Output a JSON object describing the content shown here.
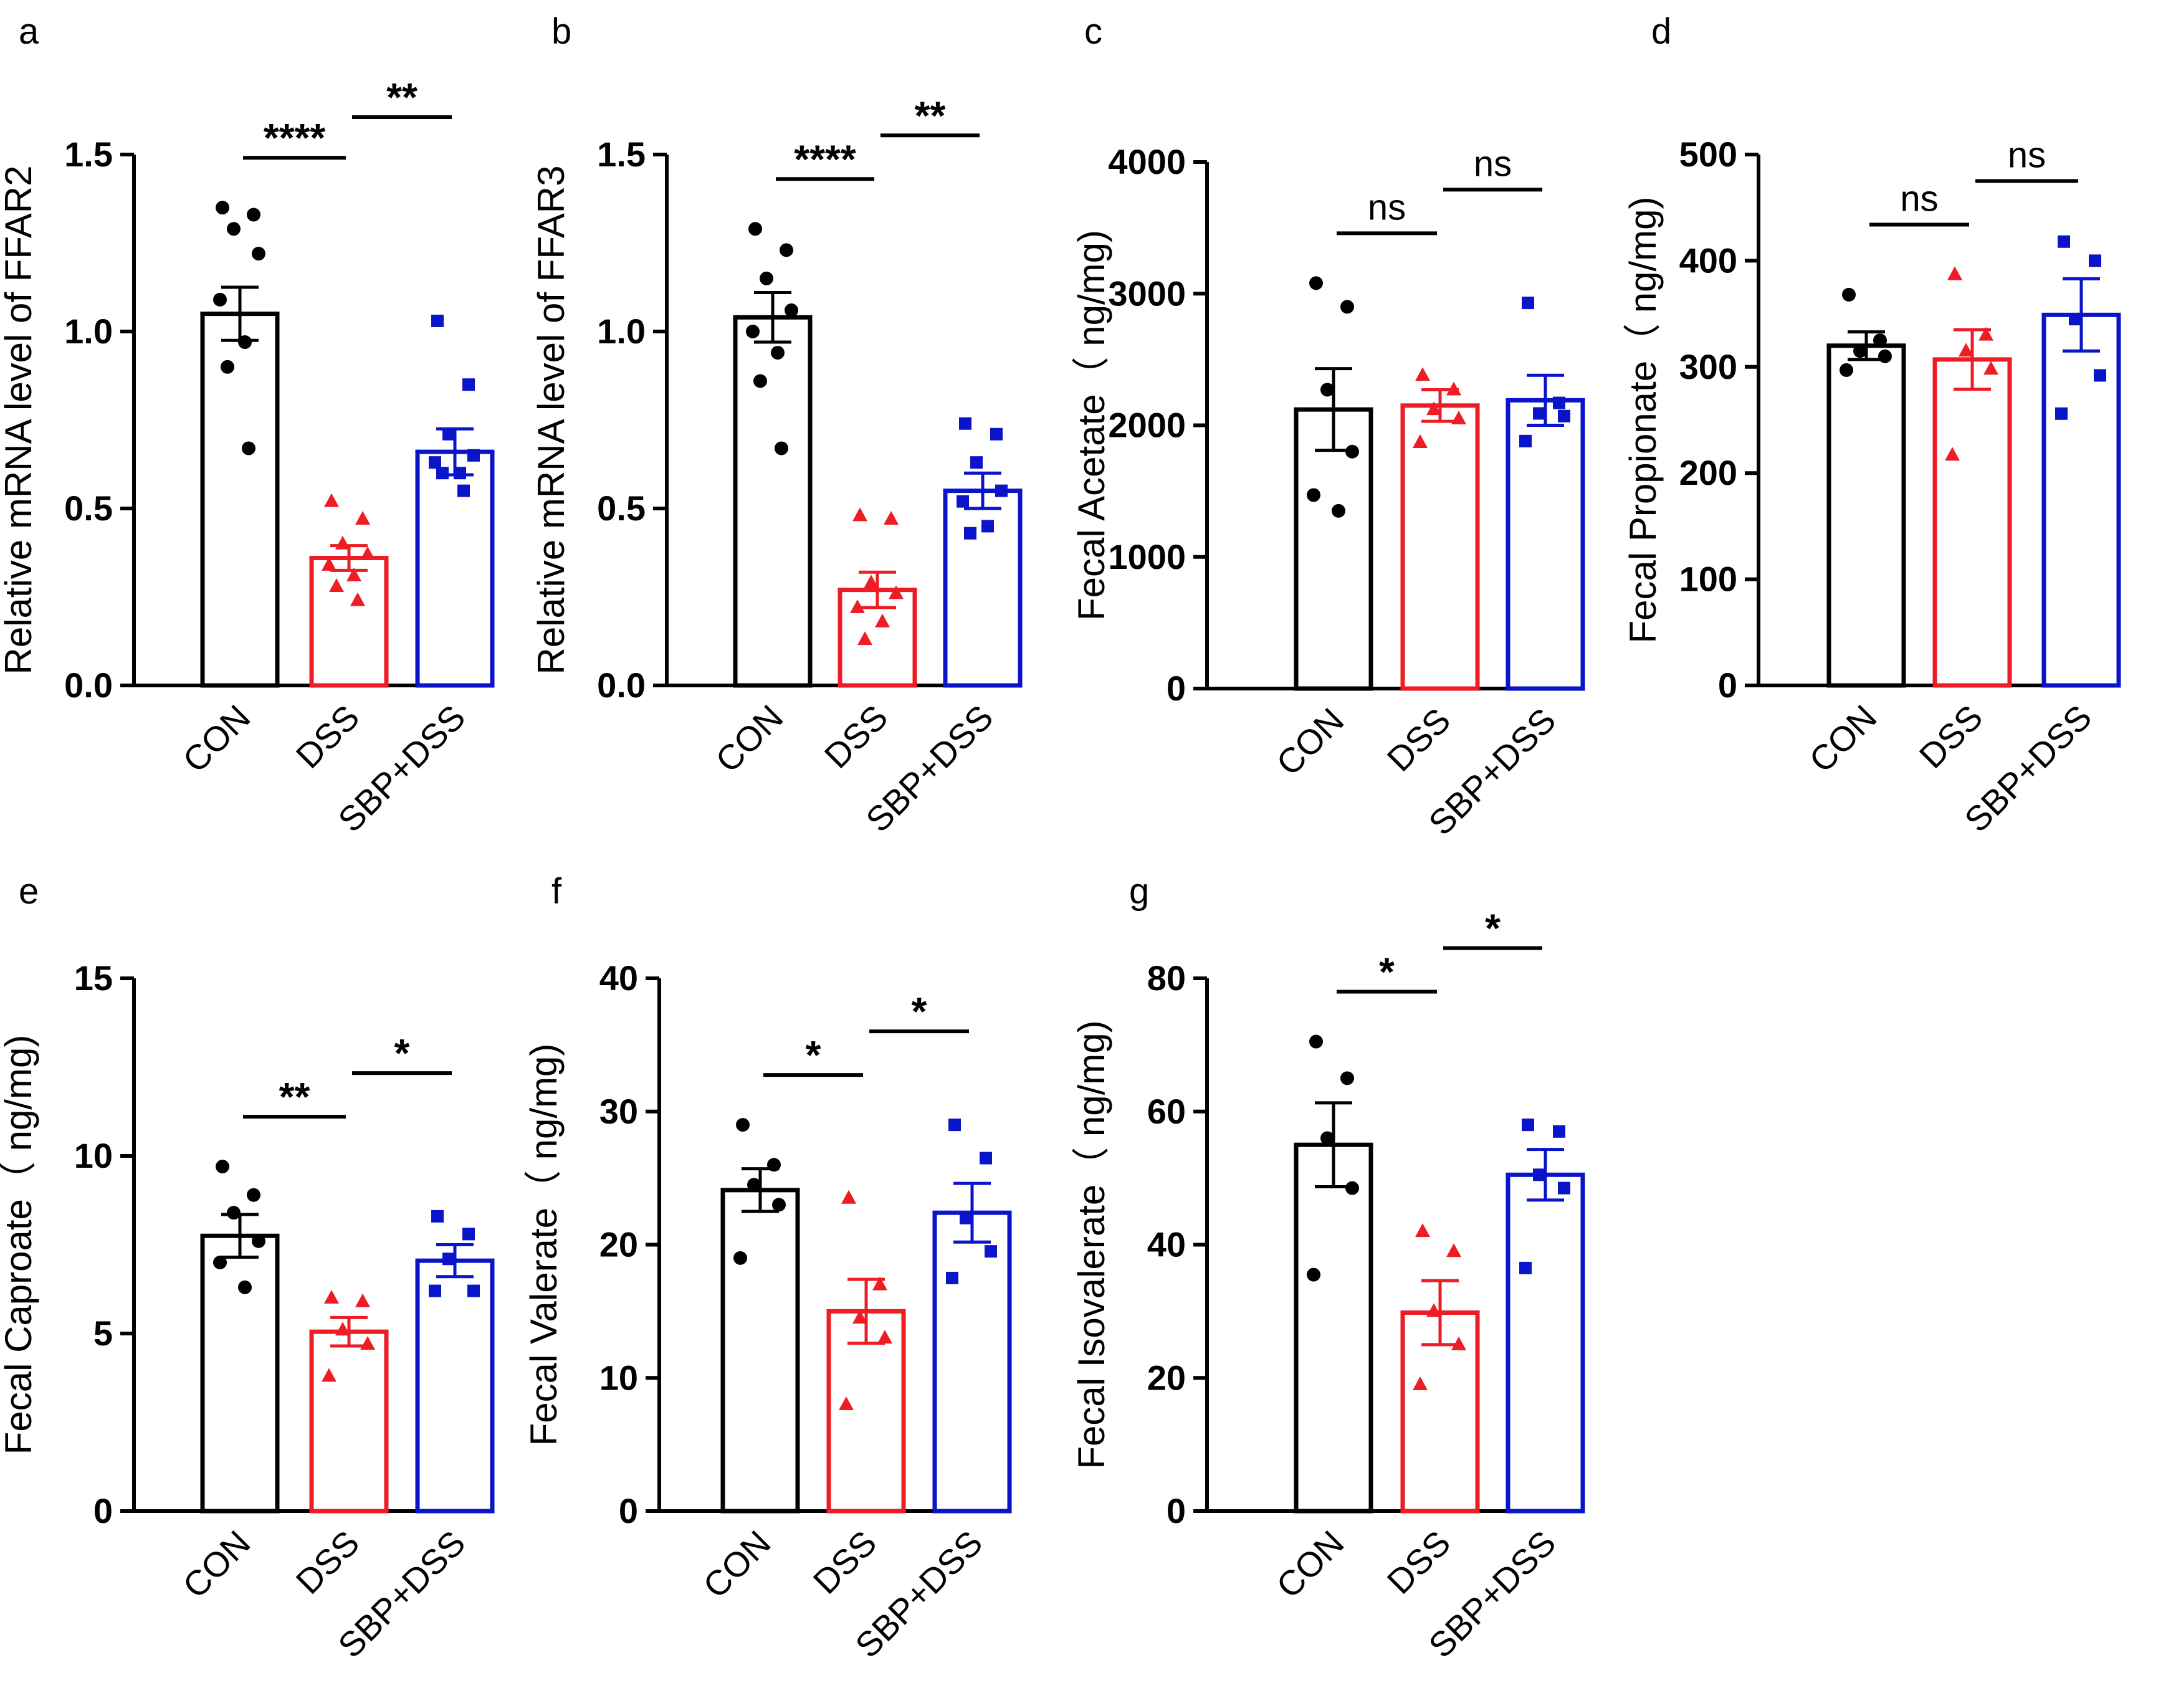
{
  "figure": {
    "description": "Seven bar-chart panels (a-g) with SEM error bars and individual data points",
    "group_colors": {
      "CON": "#000000",
      "DSS": "#ee1c24",
      "SBP+DSS": "#0a14c8"
    }
  },
  "chart_data": [
    {
      "panel": "a",
      "type": "bar",
      "title": "",
      "xlabel": "",
      "ylabel": "Relative mRNA level of FFAR2",
      "categories": [
        "CON",
        "DSS",
        "SBP+DSS"
      ],
      "ylim": [
        0,
        1.5
      ],
      "yticks": [
        0.0,
        0.5,
        1.0,
        1.5
      ],
      "ytick_labels": [
        "0.0",
        "0.5",
        "1.0",
        "1.5"
      ],
      "series": [
        {
          "name": "CON",
          "value": 1.05,
          "sem": 0.075,
          "points": [
            1.35,
            1.33,
            1.29,
            1.22,
            1.09,
            0.97,
            0.9,
            0.67
          ]
        },
        {
          "name": "DSS",
          "value": 0.36,
          "sem": 0.035,
          "points": [
            0.52,
            0.47,
            0.4,
            0.37,
            0.34,
            0.31,
            0.28,
            0.24
          ]
        },
        {
          "name": "SBP+DSS",
          "value": 0.66,
          "sem": 0.065,
          "points": [
            1.03,
            0.85,
            0.71,
            0.65,
            0.63,
            0.6,
            0.6,
            0.55
          ]
        }
      ],
      "significance": [
        {
          "label": "****",
          "between": [
            "CON",
            "DSS"
          ]
        },
        {
          "label": "**",
          "between": [
            "DSS",
            "SBP+DSS"
          ]
        }
      ]
    },
    {
      "panel": "b",
      "type": "bar",
      "title": "",
      "xlabel": "",
      "ylabel": "Relative mRNA level of FFAR3",
      "categories": [
        "CON",
        "DSS",
        "SBP+DSS"
      ],
      "ylim": [
        0,
        1.5
      ],
      "yticks": [
        0.0,
        0.5,
        1.0,
        1.5
      ],
      "ytick_labels": [
        "0.0",
        "0.5",
        "1.0",
        "1.5"
      ],
      "series": [
        {
          "name": "CON",
          "value": 1.04,
          "sem": 0.07,
          "points": [
            1.29,
            1.23,
            1.15,
            1.06,
            1.0,
            0.94,
            0.86,
            0.67
          ]
        },
        {
          "name": "DSS",
          "value": 0.27,
          "sem": 0.05,
          "points": [
            0.48,
            0.47,
            0.29,
            0.26,
            0.22,
            0.18,
            0.13
          ]
        },
        {
          "name": "SBP+DSS",
          "value": 0.55,
          "sem": 0.05,
          "points": [
            0.74,
            0.71,
            0.63,
            0.55,
            0.52,
            0.45,
            0.43
          ]
        }
      ],
      "significance": [
        {
          "label": "****",
          "between": [
            "CON",
            "DSS"
          ]
        },
        {
          "label": "**",
          "between": [
            "DSS",
            "SBP+DSS"
          ]
        }
      ]
    },
    {
      "panel": "c",
      "type": "bar",
      "title": "",
      "xlabel": "",
      "ylabel": "Fecal Acetate（ ng/mg)",
      "categories": [
        "CON",
        "DSS",
        "SBP+DSS"
      ],
      "ylim": [
        0,
        4000
      ],
      "yticks": [
        0,
        1000,
        2000,
        3000,
        4000
      ],
      "ytick_labels": [
        "0",
        "1000",
        "2000",
        "3000",
        "4000"
      ],
      "series": [
        {
          "name": "CON",
          "value": 2120,
          "sem": 310,
          "points": [
            3080,
            2900,
            2270,
            1800,
            1470,
            1350
          ]
        },
        {
          "name": "DSS",
          "value": 2150,
          "sem": 120,
          "points": [
            2380,
            2270,
            2120,
            2050,
            1870
          ]
        },
        {
          "name": "SBP+DSS",
          "value": 2190,
          "sem": 190,
          "points": [
            2930,
            2170,
            2090,
            2070,
            1880
          ]
        }
      ],
      "significance": [
        {
          "label": "ns",
          "between": [
            "CON",
            "DSS"
          ]
        },
        {
          "label": "ns",
          "between": [
            "DSS",
            "SBP+DSS"
          ]
        }
      ]
    },
    {
      "panel": "d",
      "type": "bar",
      "title": "",
      "xlabel": "",
      "ylabel": "Fecal Propionate（ ng/mg)",
      "categories": [
        "CON",
        "DSS",
        "SBP+DSS"
      ],
      "ylim": [
        0,
        500
      ],
      "yticks": [
        0,
        100,
        200,
        300,
        400,
        500
      ],
      "ytick_labels": [
        "0",
        "100",
        "200",
        "300",
        "400",
        "500"
      ],
      "series": [
        {
          "name": "CON",
          "value": 320,
          "sem": 13,
          "points": [
            368,
            325,
            315,
            310,
            297
          ]
        },
        {
          "name": "DSS",
          "value": 307,
          "sem": 28,
          "points": [
            387,
            330,
            315,
            298,
            217
          ]
        },
        {
          "name": "SBP+DSS",
          "value": 349,
          "sem": 34,
          "points": [
            418,
            400,
            345,
            292,
            256
          ]
        }
      ],
      "significance": [
        {
          "label": "ns",
          "between": [
            "CON",
            "DSS"
          ]
        },
        {
          "label": "ns",
          "between": [
            "DSS",
            "SBP+DSS"
          ]
        }
      ]
    },
    {
      "panel": "e",
      "type": "bar",
      "title": "",
      "xlabel": "",
      "ylabel": "Fecal Caproate（ ng/mg)",
      "categories": [
        "CON",
        "DSS",
        "SBP+DSS"
      ],
      "ylim": [
        0,
        15
      ],
      "yticks": [
        0,
        5,
        10,
        15
      ],
      "ytick_labels": [
        "0",
        "5",
        "10",
        "15"
      ],
      "series": [
        {
          "name": "CON",
          "value": 7.75,
          "sem": 0.6,
          "points": [
            9.7,
            8.9,
            8.4,
            7.6,
            7.0,
            6.3
          ]
        },
        {
          "name": "DSS",
          "value": 5.05,
          "sem": 0.4,
          "points": [
            6.0,
            5.9,
            5.1,
            4.7,
            3.8
          ]
        },
        {
          "name": "SBP+DSS",
          "value": 7.05,
          "sem": 0.45,
          "points": [
            8.3,
            7.8,
            7.1,
            6.2,
            6.2
          ]
        }
      ],
      "significance": [
        {
          "label": "**",
          "between": [
            "CON",
            "DSS"
          ]
        },
        {
          "label": "*",
          "between": [
            "DSS",
            "SBP+DSS"
          ]
        }
      ]
    },
    {
      "panel": "f",
      "type": "bar",
      "title": "",
      "xlabel": "",
      "ylabel": "Fecal Valerate（ ng/mg)",
      "categories": [
        "CON",
        "DSS",
        "SBP+DSS"
      ],
      "ylim": [
        0,
        40
      ],
      "yticks": [
        0,
        10,
        20,
        30,
        40
      ],
      "ytick_labels": [
        "0",
        "10",
        "20",
        "30",
        "40"
      ],
      "series": [
        {
          "name": "CON",
          "value": 24.1,
          "sem": 1.6,
          "points": [
            29.0,
            26.0,
            24.5,
            23.0,
            19.0
          ]
        },
        {
          "name": "DSS",
          "value": 15.0,
          "sem": 2.4,
          "points": [
            23.5,
            17.0,
            14.5,
            13.0,
            8.0
          ]
        },
        {
          "name": "SBP+DSS",
          "value": 22.4,
          "sem": 2.2,
          "points": [
            29.0,
            26.5,
            22.0,
            19.5,
            17.5
          ]
        }
      ],
      "significance": [
        {
          "label": "*",
          "between": [
            "CON",
            "DSS"
          ]
        },
        {
          "label": "*",
          "between": [
            "DSS",
            "SBP+DSS"
          ]
        }
      ]
    },
    {
      "panel": "g",
      "type": "bar",
      "title": "",
      "xlabel": "",
      "ylabel": "Fecal Isovalerate（ ng/mg)",
      "categories": [
        "CON",
        "DSS",
        "SBP+DSS"
      ],
      "ylim": [
        0,
        80
      ],
      "yticks": [
        0,
        20,
        40,
        60,
        80
      ],
      "ytick_labels": [
        "0",
        "20",
        "40",
        "60",
        "80"
      ],
      "series": [
        {
          "name": "CON",
          "value": 55,
          "sem": 6.3,
          "points": [
            70.5,
            65.0,
            56.0,
            48.5,
            35.5
          ]
        },
        {
          "name": "DSS",
          "value": 29.8,
          "sem": 4.8,
          "points": [
            42.0,
            39.0,
            30.0,
            25.0,
            19.0
          ]
        },
        {
          "name": "SBP+DSS",
          "value": 50.5,
          "sem": 3.8,
          "points": [
            58.0,
            57.0,
            50.5,
            48.5,
            36.5
          ]
        }
      ],
      "significance": [
        {
          "label": "*",
          "between": [
            "CON",
            "DSS"
          ]
        },
        {
          "label": "*",
          "between": [
            "DSS",
            "SBP+DSS"
          ]
        }
      ]
    }
  ]
}
